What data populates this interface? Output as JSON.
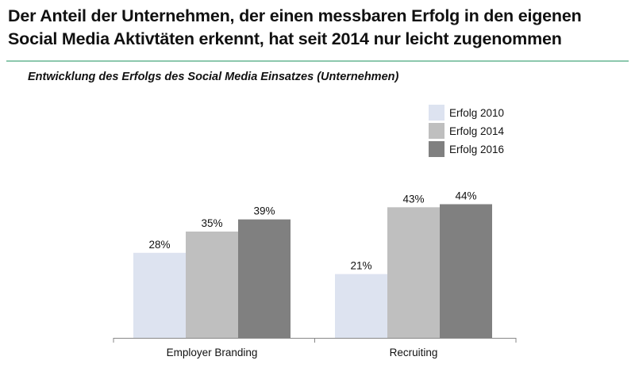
{
  "headline": {
    "line1": "Der Anteil der Unternehmen, der einen messbaren Erfolg in den eigenen",
    "line2": "Social Media Aktivtäten erkennt, hat seit 2014 nur leicht zugenommen"
  },
  "chart_data": {
    "type": "bar",
    "title": "Entwicklung des Erfolgs des Social Media Einsatzes (Unternehmen)",
    "xlabel": "",
    "ylabel": "",
    "ylim": [
      0,
      50
    ],
    "grid": false,
    "legend_position": "top-right",
    "categories": [
      "Employer Branding",
      "Recruiting"
    ],
    "series": [
      {
        "name": "Erfolg 2010",
        "values": [
          28,
          21
        ],
        "labels": [
          "28%",
          "21%"
        ],
        "color": "#dde3f0"
      },
      {
        "name": "Erfolg 2014",
        "values": [
          35,
          43
        ],
        "labels": [
          "35%",
          "43%"
        ],
        "color": "#bfbfbf"
      },
      {
        "name": "Erfolg 2016",
        "values": [
          39,
          44
        ],
        "labels": [
          "39%",
          "44%"
        ],
        "color": "#808080"
      }
    ]
  },
  "colors": {
    "rule": "#8cc8ad",
    "axis": "#888888"
  }
}
